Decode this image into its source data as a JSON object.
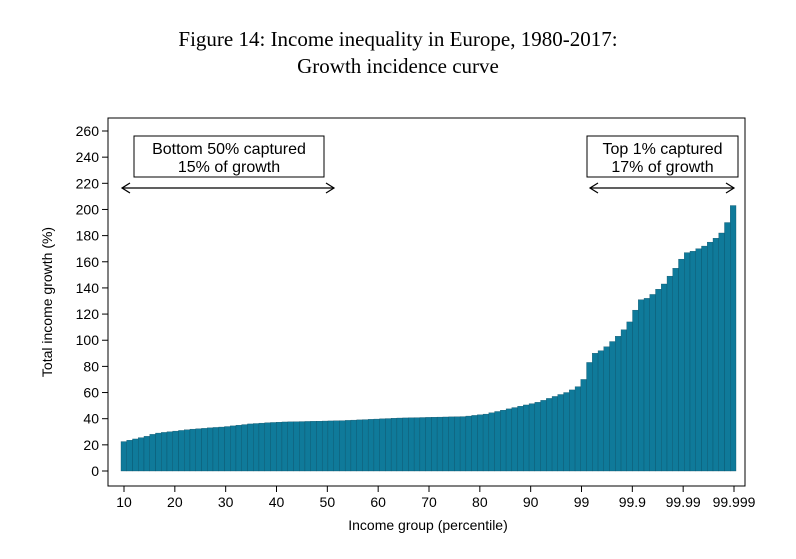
{
  "title_line1": "Figure 14: Income inequality in Europe, 1980-2017:",
  "title_line2": "Growth incidence curve",
  "chart_data": {
    "type": "bar",
    "xlabel": "Income group (percentile)",
    "ylabel": "Total income growth (%)",
    "ylim": [
      0,
      260
    ],
    "yticks": [
      0,
      20,
      40,
      60,
      80,
      100,
      120,
      140,
      160,
      180,
      200,
      220,
      240,
      260
    ],
    "xtick_labels": [
      "10",
      "20",
      "30",
      "40",
      "50",
      "60",
      "70",
      "80",
      "90",
      "99",
      "99.9",
      "99.99",
      "99.999"
    ],
    "bar_color": "#0f7a9a",
    "values": [
      22.5,
      23.5,
      24.5,
      25.5,
      26.5,
      28,
      29,
      29.5,
      30,
      30.5,
      31,
      31.5,
      32,
      32.3,
      32.6,
      33,
      33.3,
      33.6,
      34,
      34.5,
      35,
      35.5,
      36,
      36.3,
      36.6,
      36.9,
      37.1,
      37.3,
      37.5,
      37.6,
      37.7,
      37.8,
      37.9,
      38,
      38.1,
      38.2,
      38.3,
      38.4,
      38.5,
      38.7,
      38.9,
      39.1,
      39.3,
      39.5,
      39.7,
      39.9,
      40.1,
      40.3,
      40.5,
      40.6,
      40.7,
      40.8,
      40.9,
      41,
      41.1,
      41.2,
      41.3,
      41.4,
      41.5,
      41.6,
      42,
      42.5,
      43,
      43.5,
      44.5,
      45.5,
      46.5,
      47.5,
      48.5,
      49.5,
      50.5,
      51.5,
      52.5,
      54,
      55.5,
      57,
      58.5,
      60,
      62,
      64.5,
      70,
      83,
      90,
      92,
      95,
      99,
      103,
      108,
      114,
      123,
      131,
      132,
      135,
      139,
      143,
      149,
      155,
      162,
      167,
      168,
      170,
      172,
      175,
      178,
      182,
      190,
      203
    ],
    "annotations": [
      {
        "line1": "Bottom 50% captured",
        "line2": "15% of growth"
      },
      {
        "line1": "Top 1% captured",
        "line2": "17% of growth"
      }
    ]
  }
}
